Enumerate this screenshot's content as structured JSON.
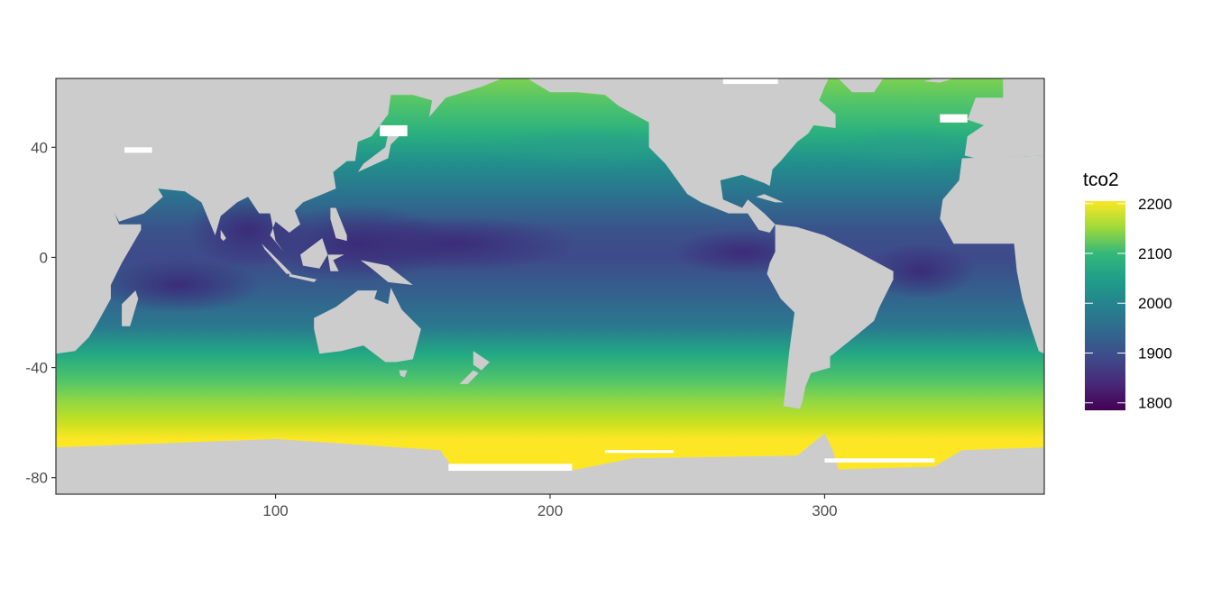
{
  "chart_data": {
    "type": "heatmap",
    "subtype": "geographic raster map",
    "title": "",
    "xlabel": "",
    "ylabel": "",
    "xlim": [
      20,
      380
    ],
    "ylim": [
      -86,
      65
    ],
    "x_ticks": [
      100,
      200,
      300
    ],
    "x_tick_labels": [
      "100",
      "200",
      "300"
    ],
    "y_ticks": [
      40,
      0,
      -40,
      -80
    ],
    "y_tick_labels": [
      "40",
      "0",
      "-40",
      "-80"
    ],
    "grid": false,
    "land_color": "#cccccc",
    "missing_color": "#ffffff",
    "legend": {
      "title": "tco2",
      "position": "right",
      "colorscale": "viridis",
      "range": [
        1785,
        2205
      ],
      "ticks": [
        2200,
        2100,
        2000,
        1900,
        1800
      ],
      "tick_labels": [
        "2200",
        "2100",
        "2000",
        "1900",
        "1800"
      ]
    },
    "pattern": {
      "lowest_regions": "tropical Indian Ocean / Bay of Bengal, western Pacific warm pool, eastern equatorial Pacific (~1800-1880)",
      "mid_regions": "subtropical gyres (~1950-2050)",
      "highest_regions": "Southern Ocean near Antarctica (~2150-2200), subpolar North Atlantic (~2100-2150)"
    }
  }
}
